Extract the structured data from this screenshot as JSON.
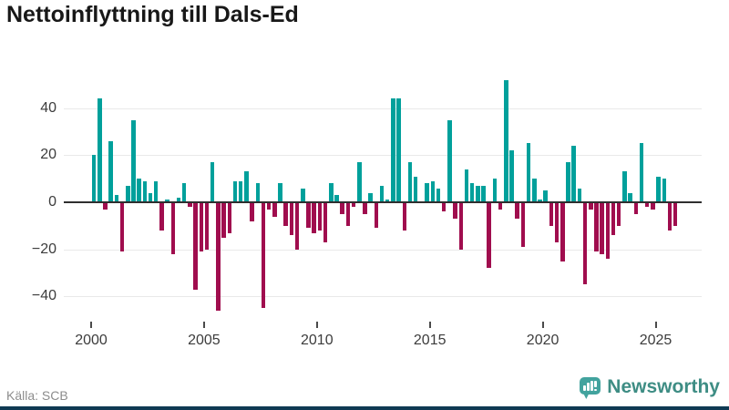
{
  "title": "Nettoinflyttning till Dals-Ed",
  "source": "Källa: SCB",
  "branding": {
    "name": "Newsworthy",
    "icon": "newsworthy-bar-chart-icon"
  },
  "colors": {
    "positive_bar": "#00a09b",
    "negative_bar": "#a00d4e",
    "grid": "#e9e9e9",
    "zero_line": "#2f2f2f",
    "axis_text": "#3c3c3c",
    "title_text": "#181818",
    "source_text": "#8c8c8c",
    "brand_text": "#3e8d84",
    "brand_icon": "#42a39e",
    "footer_strip": "#0f3a53"
  },
  "chart_data": {
    "type": "bar",
    "title": "Nettoinflyttning till Dals-Ed",
    "frequency": "quarterly",
    "x_range": [
      "2000-Q1",
      "2025-Q4"
    ],
    "values": [
      20,
      44,
      -3,
      26,
      3,
      -21,
      7,
      35,
      10,
      9,
      4,
      9,
      -12,
      1,
      -22,
      2,
      8,
      -2,
      -37,
      -21,
      -20,
      17,
      -46,
      -15,
      -13,
      9,
      9,
      13,
      -8,
      8,
      -45,
      -3,
      -6,
      8,
      -10,
      -14,
      -20,
      6,
      -11,
      -13,
      -12,
      -17,
      8,
      3,
      -5,
      -10,
      -2,
      17,
      -5,
      4,
      -11,
      7,
      1,
      44,
      44,
      -12,
      17,
      11,
      0,
      8,
      9,
      6,
      -4,
      35,
      -7,
      -20,
      14,
      8,
      7,
      7,
      -28,
      10,
      -3,
      52,
      22,
      -7,
      -19,
      25,
      10,
      1,
      5,
      -10,
      -17,
      -25,
      17,
      24,
      6,
      -35,
      -3,
      -21,
      -22,
      -24,
      -14,
      -10,
      13,
      4,
      -5,
      25,
      -2,
      -3,
      11,
      10,
      -12,
      -10
    ],
    "x_tick_labels": [
      "2000",
      "2005",
      "2010",
      "2015",
      "2020",
      "2025"
    ],
    "y_tick_labels": [
      "40",
      "20",
      "0",
      "−20",
      "−40"
    ],
    "y_ticks": [
      40,
      20,
      0,
      -20,
      -40
    ],
    "ylim": [
      -50,
      57
    ],
    "grid": "horizontal",
    "legend": "none",
    "xlabel": "",
    "ylabel": ""
  }
}
